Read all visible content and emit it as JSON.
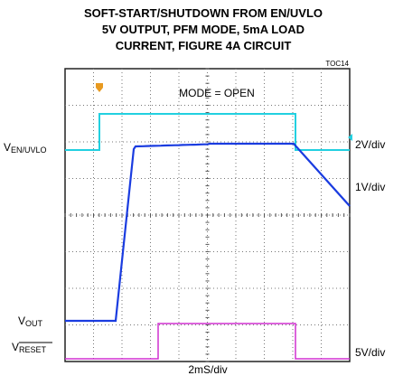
{
  "title": [
    "SOFT-START/SHUTDOWN FROM EN/UVLO",
    "5V OUTPUT, PFM MODE, 5mA LOAD",
    "CURRENT, FIGURE 4A CIRCUIT"
  ],
  "figure_id": "TOC14",
  "annotation": "MODE = OPEN",
  "channels": [
    {
      "symbol": "V",
      "subscript": "EN/UVLO",
      "scale": "2V/div"
    },
    {
      "symbol": "V",
      "subscript": "OUT",
      "scale": "1V/div"
    },
    {
      "symbol": "V",
      "subscript": "RESET",
      "scale": "5V/div"
    }
  ],
  "time_scale": "2mS/div"
}
